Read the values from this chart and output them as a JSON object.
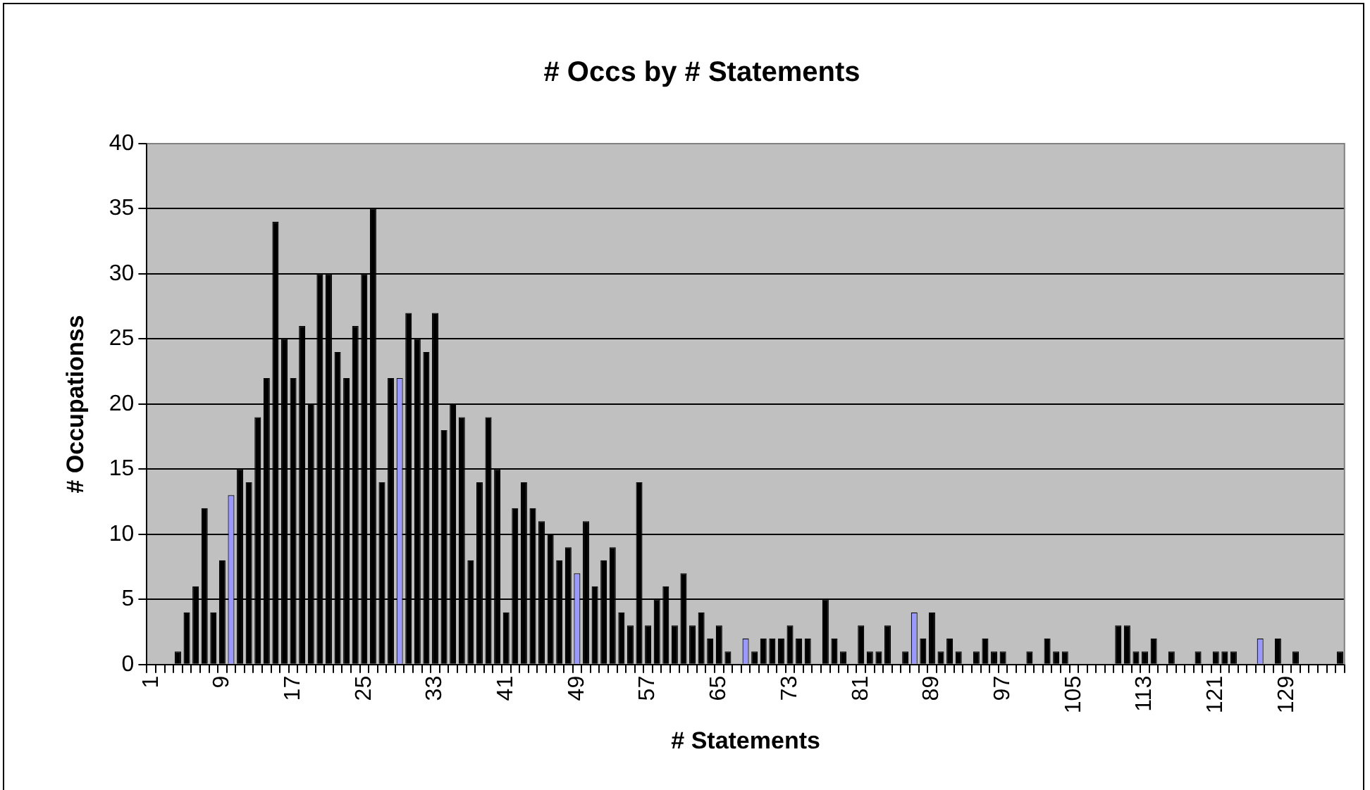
{
  "chart_data": {
    "type": "bar",
    "title": "# Occs by # Statements",
    "xlabel": "# Statements",
    "ylabel": "# Occupationss",
    "categories": [
      "1",
      null,
      null,
      null,
      null,
      null,
      null,
      null,
      "9",
      null,
      null,
      null,
      null,
      null,
      null,
      null,
      "17",
      null,
      null,
      null,
      null,
      null,
      null,
      null,
      "25",
      null,
      null,
      null,
      null,
      null,
      null,
      null,
      "33",
      null,
      null,
      null,
      null,
      null,
      null,
      null,
      "41",
      null,
      null,
      null,
      null,
      null,
      null,
      null,
      "49",
      null,
      null,
      null,
      null,
      null,
      null,
      null,
      "57",
      null,
      null,
      null,
      null,
      null,
      null,
      null,
      "65",
      null,
      null,
      null,
      null,
      null,
      null,
      null,
      "73",
      null,
      null,
      null,
      null,
      null,
      null,
      null,
      "81",
      null,
      null,
      null,
      null,
      null,
      null,
      null,
      "89",
      null,
      null,
      null,
      null,
      null,
      null,
      null,
      "97",
      null,
      null,
      null,
      null,
      null,
      null,
      null,
      "105",
      null,
      null,
      null,
      null,
      null,
      null,
      null,
      "113",
      null,
      null,
      null,
      null,
      null,
      null,
      null,
      "121",
      null,
      null,
      null,
      null,
      null,
      null,
      null,
      "129",
      null,
      null,
      null,
      null,
      null,
      null
    ],
    "values": [
      0,
      0,
      0,
      1,
      4,
      6,
      12,
      4,
      8,
      13,
      15,
      14,
      19,
      22,
      34,
      25,
      22,
      26,
      20,
      30,
      30,
      24,
      22,
      26,
      30,
      35,
      14,
      22,
      22,
      27,
      25,
      24,
      27,
      18,
      20,
      19,
      8,
      14,
      19,
      15,
      4,
      12,
      14,
      12,
      11,
      10,
      8,
      9,
      7,
      11,
      6,
      8,
      9,
      4,
      3,
      14,
      3,
      5,
      6,
      3,
      7,
      3,
      4,
      2,
      3,
      1,
      0,
      2,
      1,
      2,
      2,
      2,
      3,
      2,
      2,
      0,
      5,
      2,
      1,
      0,
      3,
      1,
      1,
      3,
      0,
      1,
      4,
      2,
      4,
      1,
      2,
      1,
      0,
      1,
      2,
      1,
      1,
      0,
      0,
      1,
      0,
      2,
      1,
      1,
      0,
      0,
      0,
      0,
      0,
      3,
      3,
      1,
      1,
      2,
      0,
      1,
      0,
      0,
      1,
      0,
      1,
      1,
      1,
      0,
      0,
      2,
      0,
      2,
      0,
      1,
      0,
      0,
      0,
      0,
      1
    ],
    "colors": [
      "#000000",
      "#000000",
      "#000000",
      "#000000",
      "#000000",
      "#000000",
      "#000000",
      "#000000",
      "#000000",
      "#9999ff",
      "#000000",
      "#000000",
      "#000000",
      "#000000",
      "#000000",
      "#000000",
      "#000000",
      "#000000",
      "#000000",
      "#000000",
      "#000000",
      "#000000",
      "#000000",
      "#000000",
      "#000000",
      "#000000",
      "#000000",
      "#000000",
      "#9999ff",
      "#000000",
      "#000000",
      "#000000",
      "#000000",
      "#000000",
      "#000000",
      "#000000",
      "#000000",
      "#000000",
      "#000000",
      "#000000",
      "#000000",
      "#000000",
      "#000000",
      "#000000",
      "#000000",
      "#000000",
      "#000000",
      "#000000",
      "#9999ff",
      "#000000",
      "#000000",
      "#000000",
      "#000000",
      "#000000",
      "#000000",
      "#000000",
      "#000000",
      "#000000",
      "#000000",
      "#000000",
      "#000000",
      "#000000",
      "#000000",
      "#000000",
      "#000000",
      "#000000",
      "#000000",
      "#9999ff",
      "#000000",
      "#000000",
      "#000000",
      "#000000",
      "#000000",
      "#000000",
      "#000000",
      "#000000",
      "#000000",
      "#000000",
      "#000000",
      "#000000",
      "#000000",
      "#000000",
      "#000000",
      "#000000",
      "#000000",
      "#000000",
      "#9999ff",
      "#000000",
      "#000000",
      "#000000",
      "#000000",
      "#000000",
      "#000000",
      "#000000",
      "#000000",
      "#000000",
      "#000000",
      "#000000",
      "#000000",
      "#000000",
      "#000000",
      "#000000",
      "#000000",
      "#000000",
      "#000000",
      "#000000",
      "#000000",
      "#000000",
      "#000000",
      "#000000",
      "#000000",
      "#000000",
      "#000000",
      "#000000",
      "#000000",
      "#000000",
      "#000000",
      "#000000",
      "#000000",
      "#000000",
      "#000000",
      "#000000",
      "#000000",
      "#000000",
      "#000000",
      "#9999ff",
      "#000000",
      "#000000",
      "#000000",
      "#000000",
      "#000000",
      "#000000",
      "#000000",
      "#000000",
      "#000000"
    ],
    "ylim": [
      0,
      40
    ],
    "yticks": [
      0,
      5,
      10,
      15,
      20,
      25,
      30,
      35,
      40
    ],
    "grid": "y",
    "legend": false
  }
}
